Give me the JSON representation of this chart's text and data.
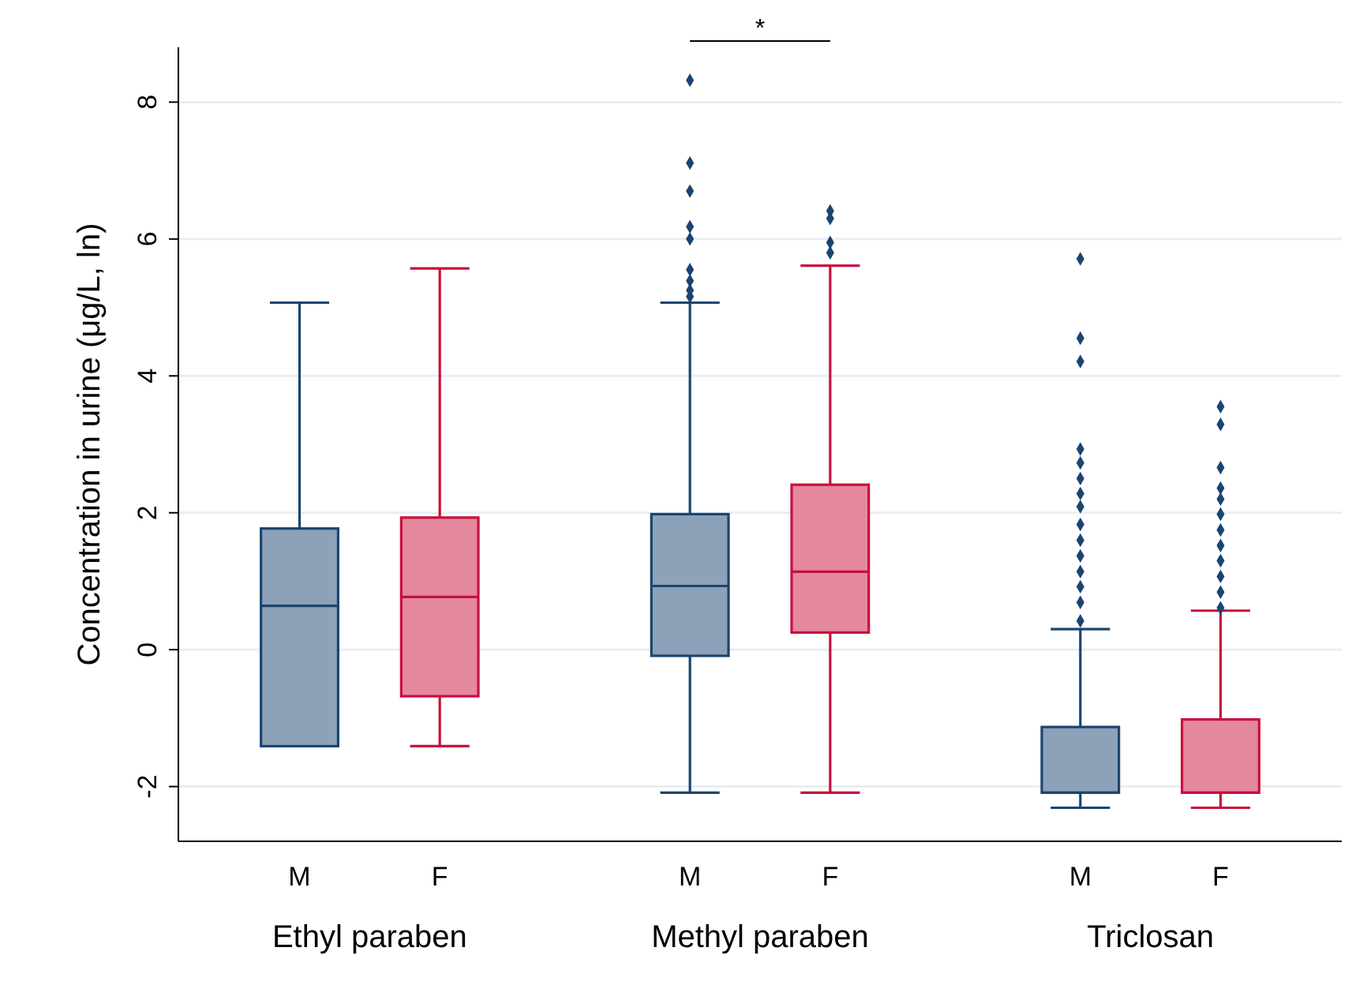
{
  "chart_data": {
    "type": "box",
    "ylabel": "Concentration in urine (μg/L, ln)",
    "categories": [
      "Ethyl paraben",
      "Methyl paraben",
      "Triclosan"
    ],
    "ylim": [
      -2.8,
      8.8
    ],
    "yticks": [
      -2,
      0,
      2,
      4,
      6,
      8
    ],
    "grid": "y",
    "annotations": [
      "*"
    ],
    "series": [
      {
        "name": "M",
        "color": "#1a4570",
        "boxes": [
          {
            "low": -1.41,
            "q1": -1.41,
            "median": 0.64,
            "q3": 1.77,
            "high": 5.07
          },
          {
            "low": -2.09,
            "q1": -0.09,
            "median": 0.93,
            "q3": 1.98,
            "high": 5.07,
            "outliers": [
              8.32,
              7.11,
              6.7,
              6.18,
              6.0,
              5.55,
              5.39,
              5.25,
              5.16
            ]
          },
          {
            "low": -2.31,
            "q1": -2.09,
            "median": -2.09,
            "q3": -1.13,
            "high": 0.3,
            "outliers": [
              5.71,
              4.55,
              4.21,
              2.93,
              2.73,
              2.5,
              2.28,
              2.09,
              1.83,
              1.6,
              1.37,
              1.14,
              0.92,
              0.69,
              0.42
            ]
          }
        ]
      },
      {
        "name": "F",
        "color": "#c8103e",
        "boxes": [
          {
            "low": -1.41,
            "q1": -0.68,
            "median": 0.77,
            "q3": 1.93,
            "high": 5.57
          },
          {
            "low": -2.09,
            "q1": 0.25,
            "median": 1.14,
            "q3": 2.41,
            "high": 5.61,
            "outliers": [
              6.41,
              6.3,
              5.95,
              5.8
            ]
          },
          {
            "low": -2.31,
            "q1": -2.09,
            "median": -2.09,
            "q3": -1.02,
            "high": 0.57,
            "outliers": [
              3.55,
              3.29,
              2.66,
              2.36,
              2.2,
              1.98,
              1.75,
              1.52,
              1.3,
              1.07,
              0.84,
              0.61
            ]
          }
        ]
      }
    ]
  }
}
